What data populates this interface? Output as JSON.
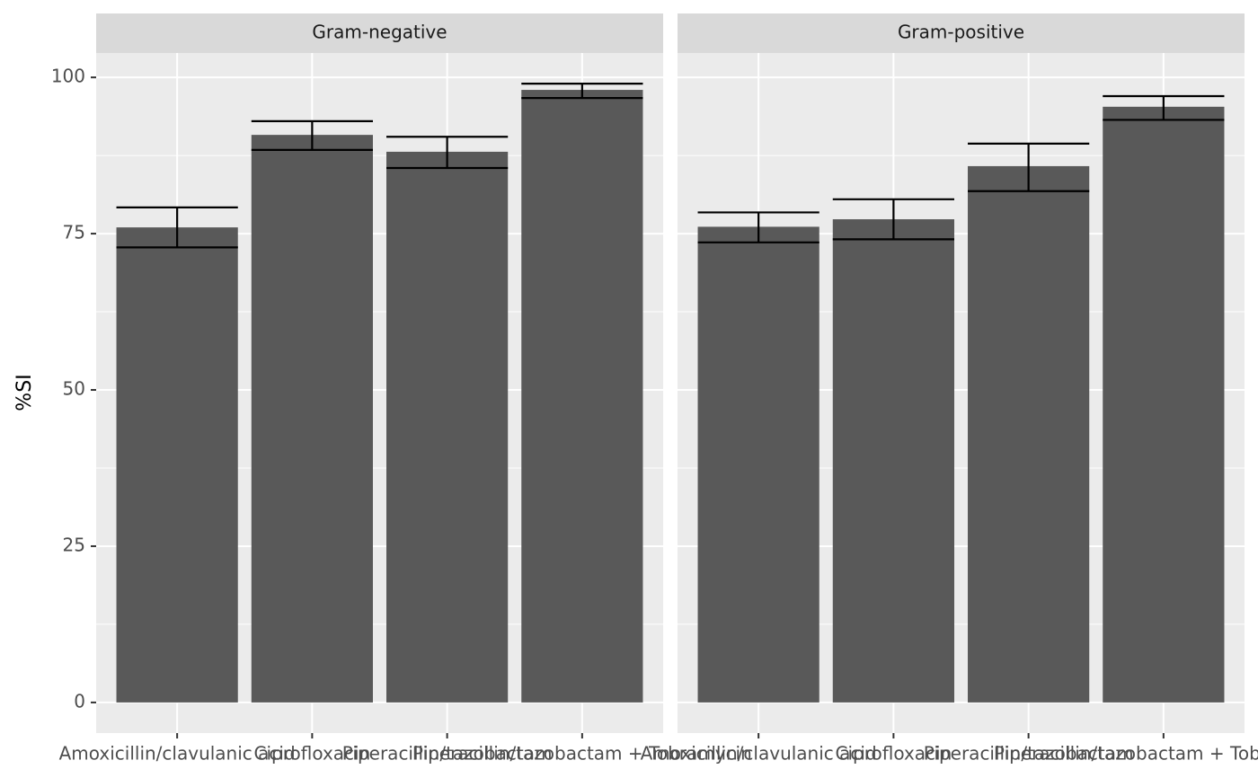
{
  "chart_data": {
    "type": "bar",
    "y_label": "%SI",
    "color": "#595959",
    "categories": [
      "Amoxicillin/clavulanic acid",
      "Ciprofloxacin",
      "Piperacillin/tazobactam",
      "Piperacillin/tazobactam + Tobramycin"
    ],
    "ylim": [
      -4.9,
      103.9
    ],
    "yticks": [
      0,
      25,
      50,
      75,
      100
    ],
    "grid": true,
    "facets": [
      {
        "title": "Gram-negative",
        "values": [
          76.0,
          90.8,
          88.1,
          98.0
        ],
        "ymin": [
          72.8,
          88.4,
          85.5,
          96.7
        ],
        "ymax": [
          79.2,
          93.0,
          90.5,
          99.0
        ]
      },
      {
        "title": "Gram-positive",
        "values": [
          76.1,
          77.3,
          85.8,
          95.3
        ],
        "ymin": [
          73.6,
          74.1,
          81.8,
          93.2
        ],
        "ymax": [
          78.4,
          80.5,
          89.4,
          97.0
        ]
      }
    ]
  }
}
